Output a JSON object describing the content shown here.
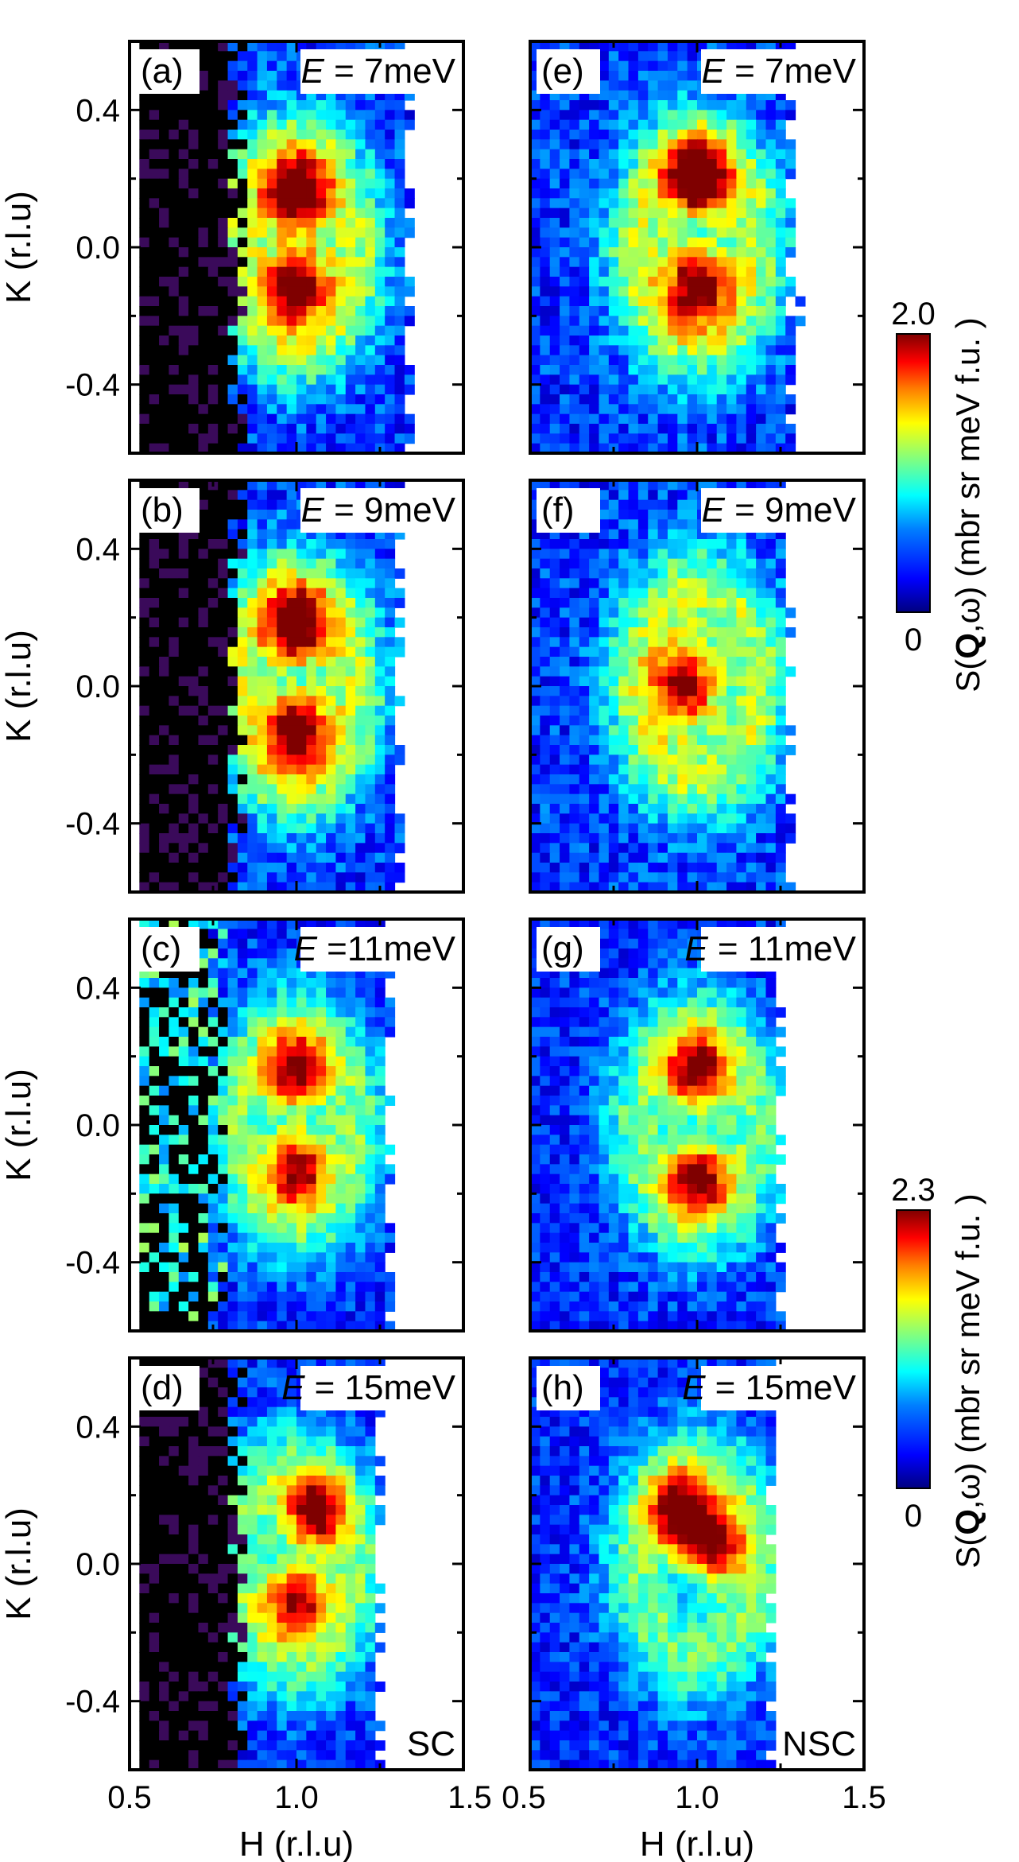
{
  "chart_data": [
    {
      "type": "heatmap",
      "panel": "(a)",
      "energy": "E = 7meV",
      "column": "SC",
      "xlabel": "H (r.l.u)",
      "ylabel": "K (r.l.u)",
      "xlim": [
        0.5,
        1.5
      ],
      "ylim": [
        -0.6,
        0.6
      ],
      "peaks": [
        {
          "H": 1.0,
          "K": 0.15
        },
        {
          "H": 1.0,
          "K": -0.1
        }
      ],
      "peak_intensity": 2.0
    },
    {
      "type": "heatmap",
      "panel": "(b)",
      "energy": "E = 9meV",
      "column": "SC",
      "xlabel": "H (r.l.u)",
      "ylabel": "K (r.l.u)",
      "xlim": [
        0.5,
        1.5
      ],
      "ylim": [
        -0.6,
        0.6
      ],
      "peaks": [
        {
          "H": 1.0,
          "K": 0.17
        },
        {
          "H": 1.0,
          "K": -0.12
        }
      ],
      "peak_intensity": 2.0
    },
    {
      "type": "heatmap",
      "panel": "(c)",
      "energy": "E =11meV",
      "column": "SC",
      "xlabel": "H (r.l.u)",
      "ylabel": "K (r.l.u)",
      "xlim": [
        0.5,
        1.5
      ],
      "ylim": [
        -0.6,
        0.6
      ],
      "peaks": [
        {
          "H": 1.0,
          "K": 0.15
        },
        {
          "H": 1.0,
          "K": -0.12
        }
      ],
      "peak_intensity": 2.3
    },
    {
      "type": "heatmap",
      "panel": "(d)",
      "energy": "E = 15meV",
      "column": "SC",
      "corner_label": "SC",
      "xlabel": "H (r.l.u)",
      "ylabel": "K (r.l.u)",
      "xlim": [
        0.5,
        1.5
      ],
      "ylim": [
        -0.6,
        0.6
      ],
      "peaks": [
        {
          "H": 1.05,
          "K": 0.15
        },
        {
          "H": 1.0,
          "K": -0.1
        }
      ],
      "peak_intensity": 2.3
    },
    {
      "type": "heatmap",
      "panel": "(e)",
      "energy": "E = 7meV",
      "column": "NSC",
      "xlabel": "H (r.l.u)",
      "ylabel": "K (r.l.u)",
      "xlim": [
        0.5,
        1.5
      ],
      "ylim": [
        -0.6,
        0.6
      ],
      "peaks": [
        {
          "H": 1.0,
          "K": 0.2
        },
        {
          "H": 1.0,
          "K": -0.1
        }
      ],
      "peak_intensity": 2.0
    },
    {
      "type": "heatmap",
      "panel": "(f)",
      "energy": "E = 9meV",
      "column": "NSC",
      "xlabel": "H (r.l.u)",
      "ylabel": "K (r.l.u)",
      "xlim": [
        0.5,
        1.5
      ],
      "ylim": [
        -0.6,
        0.6
      ],
      "peaks": [
        {
          "H": 0.97,
          "K": 0.0
        }
      ],
      "peak_intensity": 2.0
    },
    {
      "type": "heatmap",
      "panel": "(g)",
      "energy": "E = 11meV",
      "column": "NSC",
      "xlabel": "H (r.l.u)",
      "ylabel": "K (r.l.u)",
      "xlim": [
        0.5,
        1.5
      ],
      "ylim": [
        -0.6,
        0.6
      ],
      "peaks": [
        {
          "H": 1.0,
          "K": 0.15
        },
        {
          "H": 1.0,
          "K": -0.15
        }
      ],
      "peak_intensity": 2.3
    },
    {
      "type": "heatmap",
      "panel": "(h)",
      "energy": "E = 15meV",
      "column": "NSC",
      "corner_label": "NSC",
      "xlabel": "H (r.l.u)",
      "ylabel": "K (r.l.u)",
      "xlim": [
        0.5,
        1.5
      ],
      "ylim": [
        -0.6,
        0.6
      ],
      "peaks": [
        {
          "H": 0.95,
          "K": 0.15
        },
        {
          "H": 1.05,
          "K": 0.05
        }
      ],
      "peak_intensity": 2.3
    }
  ],
  "axes": {
    "ylabel": "K (r.l.u)",
    "xlabel": "H (r.l.u)",
    "y_ticks": [
      "0.4",
      "0.0",
      "-0.4"
    ],
    "x_ticks_left": [
      "0.5",
      "1.0",
      "1.5"
    ],
    "x_ticks_right": [
      "0.5",
      "1.0",
      "1.5"
    ]
  },
  "colorbars": [
    {
      "max_label": "2.0",
      "min_label": "0",
      "title": "S(Q,ω) (mbr sr  meV  f.u.  )"
    },
    {
      "max_label": "2.3",
      "min_label": "0",
      "title": "S(Q,ω) (mbr sr  meV  f.u.  )"
    }
  ],
  "colormap": [
    "#00007f",
    "#0000ff",
    "#0080ff",
    "#00ffff",
    "#80ff80",
    "#ffff00",
    "#ff8000",
    "#ff0000",
    "#7f0000"
  ]
}
